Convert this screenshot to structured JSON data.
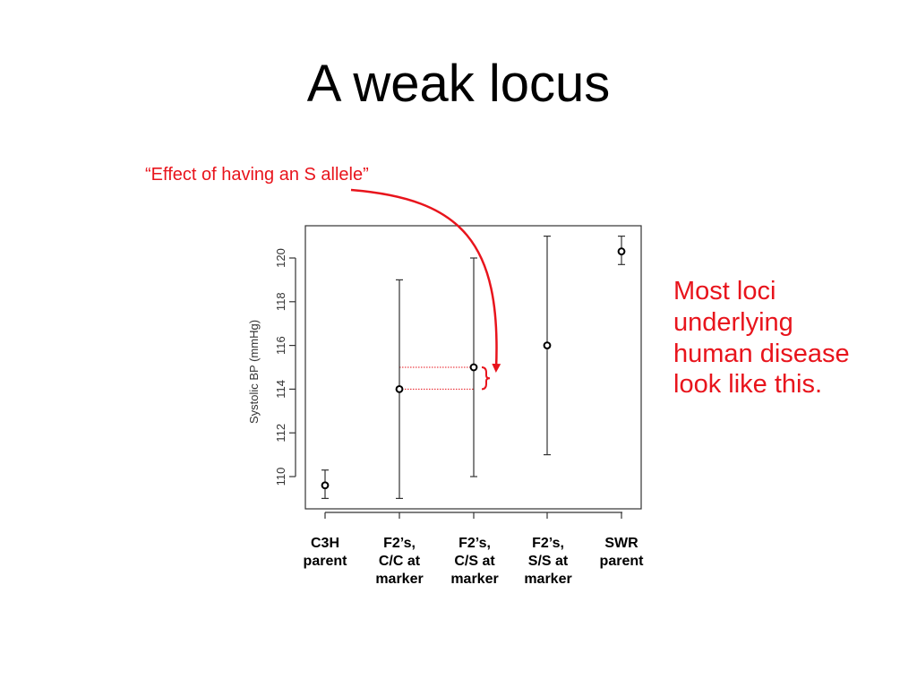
{
  "slide": {
    "title": "A weak locus",
    "annotation": "“Effect of having an S allele”",
    "side_note": "Most loci underlying human disease look like this."
  },
  "colors": {
    "accent_red": "#e8141c",
    "axis": "#333333",
    "points": "#000000"
  },
  "chart_data": {
    "type": "scatter",
    "subtype": "point-with-error-bars",
    "title": "",
    "xlabel": "",
    "ylabel": "Systolic BP (mmHg)",
    "categories": [
      "C3H\nparent",
      "F2’s,\nC/C at\nmarker",
      "F2’s,\nC/S at\nmarker",
      "F2’s,\nS/S at\nmarker",
      "SWR\nparent"
    ],
    "values": [
      109.6,
      114.0,
      115.0,
      116.0,
      120.3
    ],
    "error_low": [
      109.0,
      109.0,
      110.0,
      111.0,
      119.7
    ],
    "error_high": [
      110.3,
      119.0,
      120.0,
      121.0,
      121.0
    ],
    "ylim": [
      108.8,
      121.4
    ],
    "yticks": [
      110,
      112,
      114,
      116,
      118,
      120
    ],
    "grid": false,
    "legend": "none",
    "highlight": {
      "description_ref": "slide.annotation",
      "from_category_index": 1,
      "to_category_index": 2
    }
  }
}
